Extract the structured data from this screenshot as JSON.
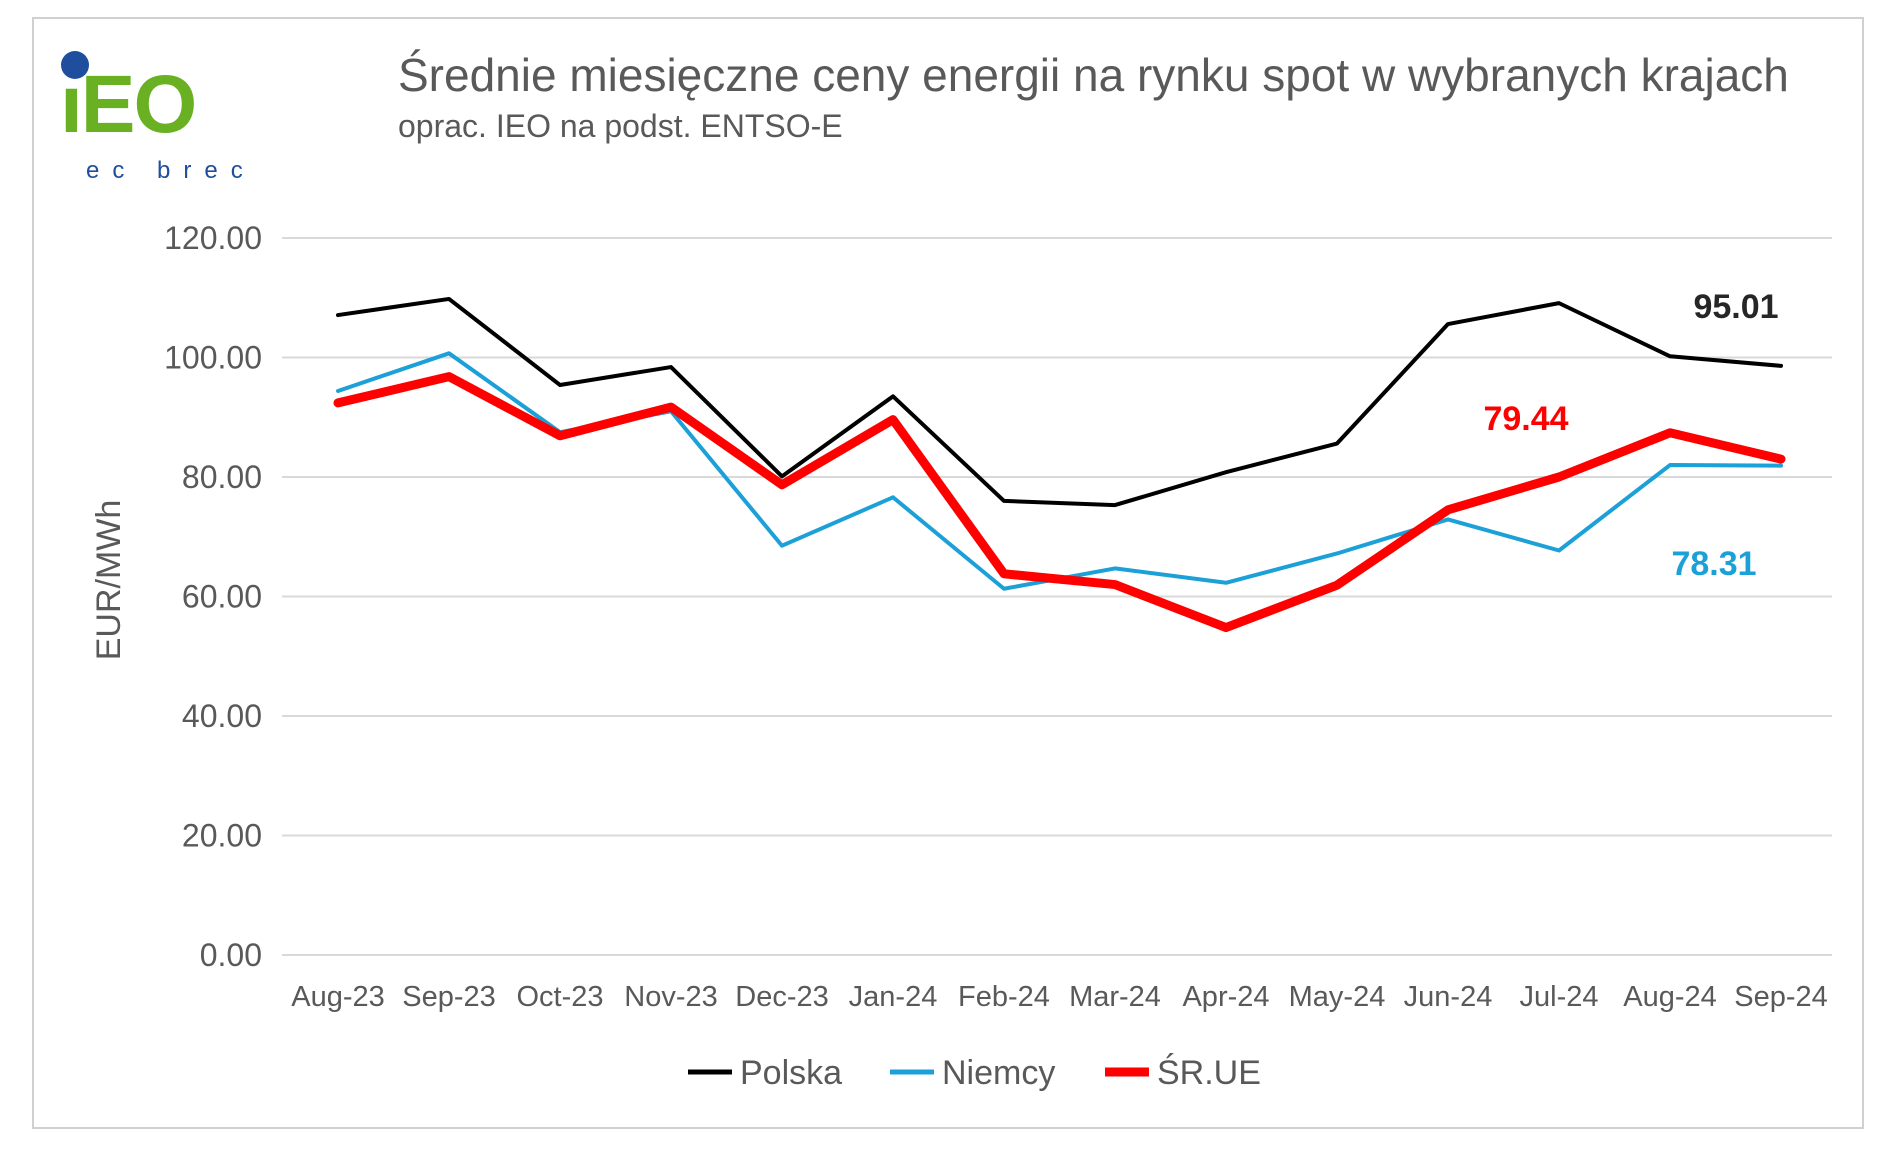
{
  "header": {
    "title": "Średnie miesięczne ceny energii na rynku spot w wybranych krajach",
    "subtitle": "oprac. IEO na podst. ENTSO-E"
  },
  "logo": {
    "text": "iEO",
    "tagline": "ec brec",
    "colors": {
      "green": "#6ab023",
      "blue": "#1f4e9e"
    }
  },
  "chart_data": {
    "type": "line",
    "categories": [
      "Aug-23",
      "Sep-23",
      "Oct-23",
      "Nov-23",
      "Dec-23",
      "Jan-24",
      "Feb-24",
      "Mar-24",
      "Apr-24",
      "May-24",
      "Jun-24",
      "Jul-24",
      "Aug-24",
      "Sep-24"
    ],
    "ylabel": "EUR/MWh",
    "ylim": [
      0,
      120
    ],
    "yticks": [
      "0.00",
      "20.00",
      "40.00",
      "60.00",
      "80.00",
      "100.00",
      "120.00"
    ],
    "grid": true,
    "legend_position": "bottom",
    "series": [
      {
        "name": "Polska",
        "color": "#000000",
        "width": "thin",
        "values": [
          107.1,
          109.8,
          95.4,
          98.4,
          80.1,
          93.5,
          76.0,
          75.3,
          80.8,
          85.6,
          105.6,
          109.1,
          100.2,
          98.6
        ]
      },
      {
        "name": "Niemcy",
        "color": "#1ca0d8",
        "width": "thin",
        "values": [
          94.4,
          100.7,
          87.5,
          91.0,
          68.5,
          76.6,
          61.3,
          64.7,
          62.3,
          67.2,
          72.9,
          67.7,
          82.0,
          81.9
        ]
      },
      {
        "name": "ŚR.UE",
        "color": "#ff0000",
        "width": "thick",
        "values": [
          92.4,
          96.8,
          86.9,
          91.7,
          78.7,
          89.6,
          63.8,
          62.0,
          54.8,
          61.9,
          74.5,
          80.0,
          87.4,
          83.0
        ]
      }
    ],
    "annotations": [
      {
        "text": "95.01",
        "color": "#262626"
      },
      {
        "text": "79.44",
        "color": "#ff0000"
      },
      {
        "text": "78.31",
        "color": "#1ca0d8"
      }
    ]
  }
}
